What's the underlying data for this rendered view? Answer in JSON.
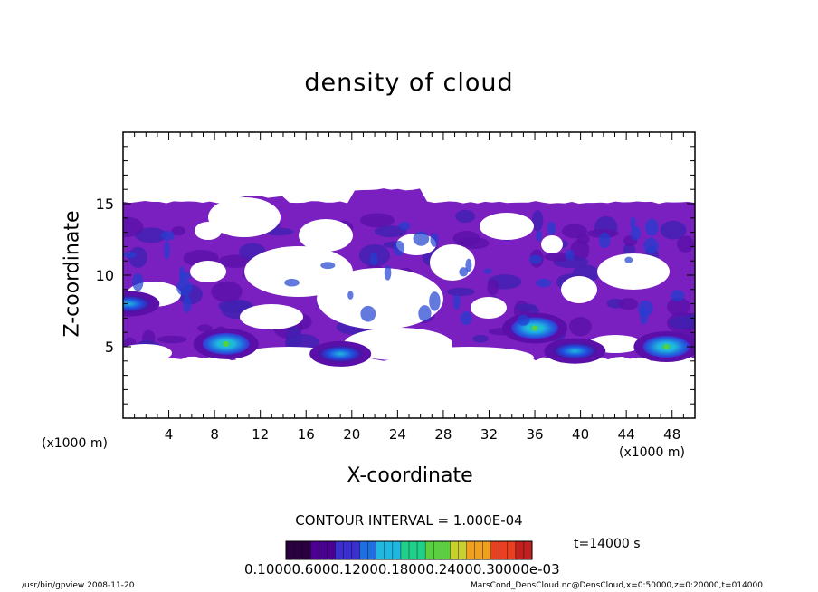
{
  "chart_data": {
    "type": "heatmap",
    "title": "density of cloud",
    "xlabel": "X-coordinate",
    "ylabel": "Z-coordinate",
    "x_unit": "(x1000 m)",
    "xlim": [
      0,
      50
    ],
    "ylim": [
      0,
      20
    ],
    "x_ticks": [
      4,
      8,
      12,
      16,
      20,
      24,
      28,
      32,
      36,
      40,
      44,
      48
    ],
    "y_ticks": [
      5,
      10,
      15
    ],
    "cloud_top_km": 15,
    "cloud_bottom_km": 4,
    "dense_regions": [
      {
        "x": 9,
        "z": 5.2,
        "level": "high"
      },
      {
        "x": 19,
        "z": 4.5,
        "level": "medium"
      },
      {
        "x": 36,
        "z": 6.3,
        "level": "high"
      },
      {
        "x": 39.5,
        "z": 4.7,
        "level": "medium"
      },
      {
        "x": 47.5,
        "z": 5.0,
        "level": "high"
      },
      {
        "x": 0.5,
        "z": 8,
        "level": "medium"
      }
    ],
    "contour_interval": "CONTOUR INTERVAL = 1.000E-04",
    "colorbar_labels": "0.10000.6000.12000.18000.24000.30000e-03",
    "colorbar_colors": [
      "#2a0040",
      "#4a0090",
      "#3b2fd0",
      "#1f6fe0",
      "#20b8e0",
      "#20d08a",
      "#5ad040",
      "#c8d030",
      "#f0a020",
      "#e84020",
      "#c02020"
    ]
  },
  "time_label": "t=14000 s",
  "footer_left": "/usr/bin/gpview   2008-11-20",
  "footer_right": "MarsCond_DensCloud.nc@DensCloud,x=0:50000,z=0:20000,t=014000"
}
